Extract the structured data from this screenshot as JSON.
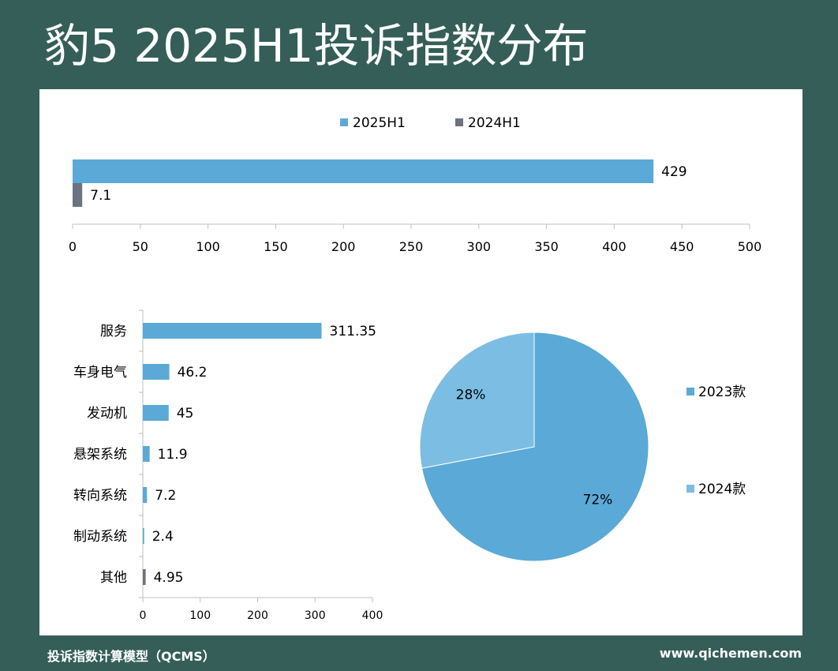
{
  "page": {
    "title": "豹5 2025H1投诉指数分布",
    "footer_left": "投诉指数计算模型（QCMS）",
    "footer_right": "www.qichemen.com",
    "colors": {
      "background": "#355e58",
      "panel": "#ffffff",
      "series_2025H1": "#5ba9d6",
      "series_2024H1": "#6b7280",
      "pie_2024": "#7cbde3"
    }
  },
  "chart_data": [
    {
      "type": "bar",
      "orientation": "horizontal",
      "legend_position": "top",
      "categories": [
        ""
      ],
      "series": [
        {
          "name": "2025H1",
          "values": [
            429
          ],
          "labels": [
            "429"
          ],
          "color": "#5ba9d6"
        },
        {
          "name": "2024H1",
          "values": [
            7.1
          ],
          "labels": [
            "7.1"
          ],
          "color": "#6b7280"
        }
      ],
      "xlim": [
        0,
        500
      ],
      "xticks": [
        0,
        50,
        100,
        150,
        200,
        250,
        300,
        350,
        400,
        450,
        500
      ],
      "grid": false
    },
    {
      "type": "bar",
      "orientation": "horizontal",
      "categories": [
        "服务",
        "车身电气",
        "发动机",
        "悬架系统",
        "转向系统",
        "制动系统",
        "其他"
      ],
      "values": [
        311.35,
        46.2,
        45,
        11.9,
        7.2,
        2.4,
        4.95
      ],
      "labels": [
        "311.35",
        "46.2",
        "45",
        "11.9",
        "7.2",
        "2.4",
        "4.95"
      ],
      "colors": [
        "#5ba9d6",
        "#5ba9d6",
        "#5ba9d6",
        "#5ba9d6",
        "#5ba9d6",
        "#5ba9d6",
        "#6b7280"
      ],
      "xlim": [
        0,
        400
      ],
      "xticks": [
        0,
        100,
        200,
        300,
        400
      ],
      "grid": false
    },
    {
      "type": "pie",
      "legend_position": "right",
      "slices": [
        {
          "name": "2023款",
          "value": 72,
          "label": "72%",
          "color": "#5ba9d6"
        },
        {
          "name": "2024款",
          "value": 28,
          "label": "28%",
          "color": "#7cbde3"
        }
      ]
    }
  ]
}
